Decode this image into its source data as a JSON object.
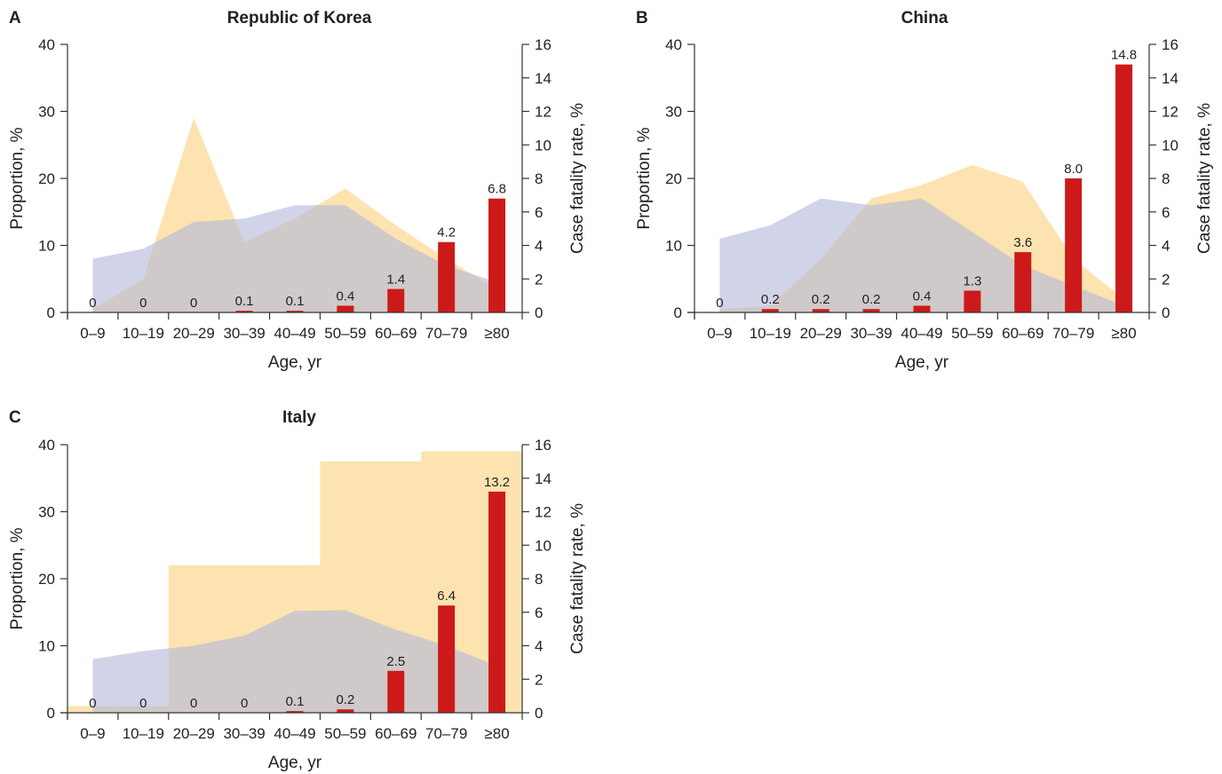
{
  "chart_data": [
    {
      "type": "bar",
      "panel": "A",
      "title": "Republic of Korea",
      "xlabel": "Age, yr",
      "ylabel": "Proportion, %",
      "y2label": "Case fatality rate, %",
      "categories": [
        "0–9",
        "10–19",
        "20–29",
        "30–39",
        "40–49",
        "50–59",
        "60–69",
        "70–79",
        "≥80"
      ],
      "ylim": [
        0,
        40
      ],
      "y2lim": [
        0,
        16
      ],
      "yticks": [
        0,
        10,
        20,
        30,
        40
      ],
      "y2ticks": [
        0,
        2,
        4,
        6,
        8,
        10,
        12,
        14,
        16
      ],
      "area_series": [
        {
          "color": "#fce3b0",
          "values": [
            0.5,
            5,
            29,
            10.5,
            14,
            18.5,
            13,
            8,
            3.5
          ]
        },
        {
          "color": "#b3b7db",
          "values": [
            8,
            9.5,
            13.5,
            14,
            16,
            16,
            11,
            7,
            4.5
          ]
        }
      ],
      "bars": {
        "color": "#cc1a1a",
        "values": [
          0,
          0,
          0,
          0.1,
          0.1,
          0.4,
          1.4,
          4.2,
          6.8
        ],
        "labels": [
          "0",
          "0",
          "0",
          "0.1",
          "0.1",
          "0.4",
          "1.4",
          "4.2",
          "6.8"
        ]
      },
      "grid": false
    },
    {
      "type": "bar",
      "panel": "B",
      "title": "China",
      "xlabel": "Age, yr",
      "ylabel": "Proportion, %",
      "y2label": "Case fatality rate, %",
      "categories": [
        "0–9",
        "10–19",
        "20–29",
        "30–39",
        "40–49",
        "50–59",
        "60–69",
        "70–79",
        "≥80"
      ],
      "ylim": [
        0,
        40
      ],
      "y2lim": [
        0,
        16
      ],
      "yticks": [
        0,
        10,
        20,
        30,
        40
      ],
      "y2ticks": [
        0,
        2,
        4,
        6,
        8,
        10,
        12,
        14,
        16
      ],
      "area_series": [
        {
          "color": "#fce3b0",
          "values": [
            0.5,
            1,
            8,
            17,
            19,
            22,
            19.5,
            8,
            2
          ]
        },
        {
          "color": "#b3b7db",
          "values": [
            11,
            13,
            17,
            16,
            17,
            12,
            7,
            4,
            1
          ]
        }
      ],
      "bars": {
        "color": "#cc1a1a",
        "values": [
          0,
          0.2,
          0.2,
          0.2,
          0.4,
          1.3,
          3.6,
          8.0,
          14.8
        ],
        "labels": [
          "0",
          "0.2",
          "0.2",
          "0.2",
          "0.4",
          "1.3",
          "3.6",
          "8.0",
          "14.8"
        ]
      },
      "grid": false
    },
    {
      "type": "bar",
      "panel": "C",
      "title": "Italy",
      "xlabel": "Age, yr",
      "ylabel": "Proportion, %",
      "y2label": "Case fatality rate, %",
      "categories": [
        "0–9",
        "10–19",
        "20–29",
        "30–39",
        "40–49",
        "50–59",
        "60–69",
        "70–79",
        "≥80"
      ],
      "ylim": [
        0,
        40
      ],
      "y2lim": [
        0,
        16
      ],
      "yticks": [
        0,
        10,
        20,
        30,
        40
      ],
      "y2ticks": [
        0,
        2,
        4,
        6,
        8,
        10,
        12,
        14,
        16
      ],
      "area_series": [
        {
          "color": "#fce3b0",
          "shape": "step",
          "values": [
            1,
            1,
            22,
            22,
            22,
            37.5,
            37.5,
            39,
            39
          ]
        },
        {
          "color": "#b3b7db",
          "values": [
            8,
            9.2,
            10,
            11.5,
            15.2,
            15.3,
            12.4,
            10,
            7
          ]
        }
      ],
      "bars": {
        "color": "#cc1a1a",
        "values": [
          0,
          0,
          0,
          0,
          0.1,
          0.2,
          2.5,
          6.4,
          13.2
        ],
        "labels": [
          "0",
          "0",
          "0",
          "0",
          "0.1",
          "0.2",
          "2.5",
          "6.4",
          "13.2"
        ]
      },
      "grid": false
    }
  ]
}
